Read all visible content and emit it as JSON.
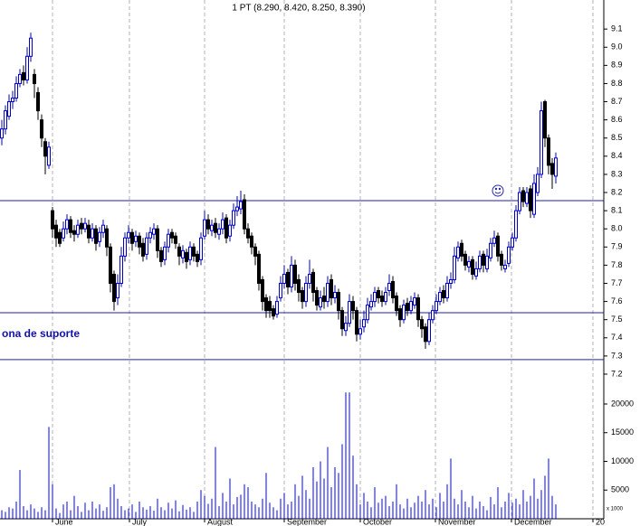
{
  "chart_data": {
    "type": "candlestick",
    "title": "1 PT (8.290, 8.420, 8.250, 8.390)",
    "annotation": "ona de suporte",
    "volume_unit_label": "x 1000",
    "open": [
      8.5,
      8.55,
      8.62,
      8.7,
      8.72,
      8.8,
      8.86,
      8.82,
      8.95,
      8.85,
      8.75,
      8.6,
      8.48,
      8.35,
      8.1,
      8.02,
      7.98,
      7.95,
      8.0,
      8.05,
      7.99,
      7.97,
      8.03,
      8.0,
      8.02,
      7.95,
      8.0,
      7.93,
      7.98,
      8.0,
      7.9,
      7.75,
      7.62,
      7.7,
      7.85,
      7.95,
      7.98,
      7.93,
      7.96,
      7.92,
      7.86,
      7.95,
      7.97,
      8.0,
      7.88,
      7.83,
      7.9,
      7.98,
      7.96,
      7.9,
      7.84,
      7.87,
      7.83,
      7.9,
      7.86,
      7.83,
      7.96,
      8.05,
      7.99,
      8.03,
      7.97,
      8.0,
      8.06,
      7.96,
      8.02,
      8.1,
      8.11,
      8.16,
      8.0,
      7.96,
      7.9,
      7.86,
      7.72,
      7.62,
      7.6,
      7.56,
      7.53,
      7.62,
      7.7,
      7.76,
      7.68,
      7.8,
      7.72,
      7.66,
      7.6,
      7.7,
      7.76,
      7.66,
      7.57,
      7.63,
      7.6,
      7.72,
      7.62,
      7.65,
      7.55,
      7.44,
      7.48,
      7.6,
      7.55,
      7.42,
      7.46,
      7.5,
      7.57,
      7.6,
      7.66,
      7.63,
      7.6,
      7.66,
      7.71,
      7.63,
      7.56,
      7.5,
      7.59,
      7.55,
      7.58,
      7.62,
      7.5,
      7.46,
      7.38,
      7.5,
      7.55,
      7.6,
      7.66,
      7.62,
      7.7,
      7.72,
      7.84,
      7.92,
      7.86,
      7.79,
      7.83,
      7.74,
      7.78,
      7.86,
      7.78,
      7.84,
      7.92,
      7.96,
      7.86,
      7.78,
      7.81,
      7.9,
      7.95,
      8.1,
      8.21,
      8.14,
      8.22,
      8.08,
      8.2,
      8.3,
      8.7,
      8.5,
      8.36,
      8.29
    ],
    "high": [
      8.6,
      8.68,
      8.74,
      8.76,
      8.84,
      8.88,
      8.9,
      9.0,
      9.08,
      8.88,
      8.78,
      8.63,
      8.5,
      8.48,
      8.12,
      8.05,
      8.0,
      8.04,
      8.08,
      8.07,
      8.02,
      8.05,
      8.06,
      8.06,
      8.05,
      8.03,
      8.02,
      8.01,
      8.05,
      8.02,
      7.92,
      7.77,
      7.75,
      7.9,
      7.98,
      8.02,
      8.0,
      7.99,
      7.98,
      7.95,
      7.98,
      8.01,
      8.03,
      8.02,
      7.9,
      7.93,
      8.0,
      8.0,
      7.98,
      7.92,
      7.91,
      7.89,
      7.93,
      7.92,
      7.88,
      7.98,
      8.1,
      8.08,
      8.05,
      8.06,
      8.03,
      8.09,
      8.08,
      8.05,
      8.14,
      8.18,
      8.21,
      8.19,
      8.03,
      7.98,
      7.92,
      7.88,
      7.74,
      7.64,
      7.63,
      7.58,
      7.63,
      7.74,
      7.8,
      7.78,
      7.85,
      7.83,
      7.75,
      7.68,
      7.74,
      7.83,
      7.78,
      7.68,
      7.66,
      7.68,
      7.74,
      7.75,
      7.69,
      7.67,
      7.57,
      7.52,
      7.64,
      7.63,
      7.57,
      7.5,
      7.55,
      7.62,
      7.64,
      7.68,
      7.68,
      7.66,
      7.68,
      7.75,
      7.74,
      7.65,
      7.58,
      7.61,
      7.62,
      7.63,
      7.65,
      7.64,
      7.52,
      7.48,
      7.54,
      7.58,
      7.64,
      7.68,
      7.69,
      7.74,
      7.76,
      7.9,
      7.93,
      7.94,
      7.88,
      7.85,
      7.85,
      7.82,
      7.88,
      7.88,
      7.89,
      7.95,
      7.99,
      7.98,
      7.88,
      7.83,
      7.93,
      7.98,
      8.13,
      8.23,
      8.23,
      8.23,
      8.24,
      8.3,
      8.34,
      8.7,
      8.71,
      8.52,
      8.39,
      8.42
    ],
    "low": [
      8.46,
      8.52,
      8.6,
      8.66,
      8.7,
      8.78,
      8.79,
      8.8,
      8.92,
      8.72,
      8.6,
      8.45,
      8.3,
      8.33,
      7.95,
      7.9,
      7.9,
      7.93,
      7.97,
      7.95,
      7.93,
      7.95,
      7.97,
      7.98,
      7.92,
      7.93,
      7.88,
      7.9,
      7.95,
      7.85,
      7.65,
      7.55,
      7.58,
      7.68,
      7.82,
      7.92,
      7.88,
      7.9,
      7.86,
      7.82,
      7.83,
      7.92,
      7.94,
      7.84,
      7.79,
      7.8,
      7.87,
      7.92,
      7.89,
      7.8,
      7.81,
      7.78,
      7.8,
      7.82,
      7.79,
      7.8,
      7.94,
      7.97,
      7.96,
      7.95,
      7.94,
      7.97,
      7.92,
      7.93,
      8.0,
      8.07,
      8.08,
      7.97,
      7.92,
      7.86,
      7.8,
      7.66,
      7.55,
      7.51,
      7.51,
      7.5,
      7.51,
      7.6,
      7.67,
      7.64,
      7.65,
      7.66,
      7.6,
      7.56,
      7.57,
      7.67,
      7.6,
      7.55,
      7.55,
      7.56,
      7.57,
      7.58,
      7.59,
      7.5,
      7.41,
      7.41,
      7.46,
      7.5,
      7.38,
      7.39,
      7.43,
      7.48,
      7.55,
      7.57,
      7.59,
      7.57,
      7.58,
      7.63,
      7.59,
      7.52,
      7.46,
      7.48,
      7.52,
      7.53,
      7.56,
      7.46,
      7.4,
      7.34,
      7.36,
      7.48,
      7.53,
      7.58,
      7.59,
      7.6,
      7.67,
      7.7,
      7.82,
      7.82,
      7.77,
      7.76,
      7.72,
      7.72,
      7.76,
      7.76,
      7.76,
      7.82,
      7.9,
      7.82,
      7.77,
      7.76,
      7.79,
      7.88,
      7.93,
      8.08,
      8.12,
      8.12,
      8.06,
      8.06,
      8.18,
      8.28,
      8.45,
      8.3,
      8.22,
      8.25
    ],
    "close": [
      8.55,
      8.65,
      8.7,
      8.72,
      8.8,
      8.85,
      8.82,
      8.95,
      9.05,
      8.8,
      8.65,
      8.5,
      8.4,
      8.45,
      8.0,
      7.95,
      7.92,
      8.0,
      8.05,
      7.98,
      7.97,
      8.02,
      8.0,
      8.03,
      7.95,
      8.0,
      7.92,
      7.98,
      8.02,
      7.9,
      7.7,
      7.6,
      7.7,
      7.85,
      7.95,
      7.98,
      7.92,
      7.96,
      7.9,
      7.85,
      7.95,
      7.98,
      8.0,
      7.88,
      7.82,
      7.9,
      7.97,
      7.95,
      7.92,
      7.85,
      7.88,
      7.82,
      7.9,
      7.85,
      7.82,
      7.95,
      8.05,
      8.0,
      8.02,
      7.98,
      8.0,
      8.05,
      7.95,
      8.02,
      8.1,
      8.12,
      8.15,
      8.0,
      7.95,
      7.9,
      7.85,
      7.7,
      7.6,
      7.55,
      7.55,
      7.52,
      7.6,
      7.7,
      7.75,
      7.68,
      7.8,
      7.7,
      7.65,
      7.6,
      7.7,
      7.75,
      7.65,
      7.58,
      7.62,
      7.6,
      7.7,
      7.62,
      7.65,
      7.55,
      7.45,
      7.48,
      7.6,
      7.55,
      7.42,
      7.45,
      7.5,
      7.58,
      7.6,
      7.65,
      7.62,
      7.6,
      7.65,
      7.7,
      7.62,
      7.55,
      7.5,
      7.58,
      7.55,
      7.6,
      7.62,
      7.5,
      7.45,
      7.38,
      7.5,
      7.55,
      7.6,
      7.65,
      7.62,
      7.7,
      7.72,
      7.85,
      7.9,
      7.85,
      7.8,
      7.82,
      7.75,
      7.78,
      7.85,
      7.8,
      7.85,
      7.92,
      7.95,
      7.85,
      7.8,
      7.8,
      7.9,
      7.95,
      8.1,
      8.2,
      8.15,
      8.2,
      8.1,
      8.25,
      8.3,
      8.65,
      8.5,
      8.35,
      8.3,
      8.39
    ],
    "volume": [
      1500,
      1200,
      2000,
      1800,
      3000,
      8500,
      2200,
      1500,
      2500,
      1800,
      1200,
      2000,
      1500,
      16000,
      6000,
      1800,
      1000,
      2500,
      3000,
      1500,
      4000,
      2200,
      1200,
      2800,
      1500,
      3000,
      1800,
      2500,
      1400,
      2000,
      5500,
      6000,
      3500,
      2200,
      1500,
      1800,
      2500,
      1200,
      3000,
      2000,
      1600,
      2200,
      1400,
      3500,
      2000,
      1500,
      2800,
      1800,
      3200,
      1300,
      2400,
      1600,
      2000,
      1200,
      3000,
      5000,
      4000,
      2600,
      3500,
      12500,
      2200,
      4500,
      3000,
      7000,
      2500,
      3800,
      4200,
      6000,
      5500,
      3000,
      2500,
      2000,
      3500,
      8000,
      2800,
      2000,
      1500,
      3500,
      4500,
      2500,
      3000,
      6000,
      4000,
      7500,
      5000,
      3500,
      9000,
      6500,
      10000,
      7000,
      12500,
      5500,
      9000,
      8000,
      13000,
      22000,
      22000,
      11000,
      6000,
      2500,
      4500,
      3000,
      2000,
      5500,
      2800,
      3500,
      4000,
      2200,
      3000,
      6000,
      2500,
      1800,
      3500,
      2000,
      2800,
      4000,
      3000,
      5000,
      2500,
      3500,
      2000,
      4500,
      3000,
      6000,
      10500,
      3500,
      2500,
      5000,
      3000,
      2000,
      4000,
      1800,
      3000,
      2200,
      1500,
      3800,
      2500,
      5500,
      2000,
      3000,
      4500,
      2800,
      3500,
      2500,
      5000,
      3000,
      4000,
      7000,
      3500,
      5000,
      7500,
      10500,
      4000,
      2500
    ],
    "xlim": [
      -0.5,
      166.25
    ],
    "xticks": [
      {
        "value": 14,
        "label": "June"
      },
      {
        "value": 35.25,
        "label": "July"
      },
      {
        "value": 56,
        "label": "August"
      },
      {
        "value": 78,
        "label": "September"
      },
      {
        "value": 99,
        "label": "October"
      },
      {
        "value": 119.75,
        "label": "November"
      },
      {
        "value": 140.75,
        "label": "December"
      },
      {
        "value": 163.25,
        "label": "20"
      }
    ],
    "ylim": [
      7.17,
      9.26
    ],
    "yticks": [
      7.2,
      7.3,
      7.4,
      7.5,
      7.6,
      7.7,
      7.8,
      7.9,
      {
        "value": 8,
        "label": "8.0"
      },
      8.1,
      8.2,
      8.3,
      8.4,
      8.5,
      8.6,
      8.7,
      8.8,
      8.9,
      {
        "value": 9,
        "label": "9.0"
      },
      9.1
    ],
    "volume_ylim": [
      0,
      24250
    ],
    "volume_yticks": [
      5000,
      10000,
      15000,
      20000
    ],
    "hlines": [
      8.155,
      7.538,
      7.28
    ],
    "grid": "x",
    "up_color": "#0000c8",
    "down_color": "#000000",
    "volume_color": "#0000ff",
    "line_color": "#2020a0"
  }
}
